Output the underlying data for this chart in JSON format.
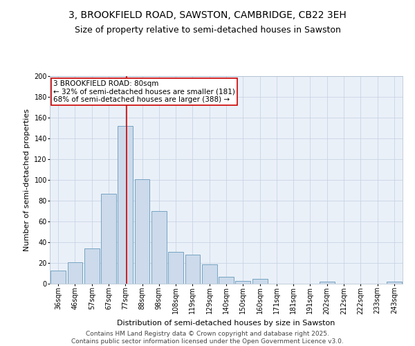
{
  "title": "3, BROOKFIELD ROAD, SAWSTON, CAMBRIDGE, CB22 3EH",
  "subtitle": "Size of property relative to semi-detached houses in Sawston",
  "xlabel": "Distribution of semi-detached houses by size in Sawston",
  "ylabel": "Number of semi-detached properties",
  "categories": [
    "36sqm",
    "46sqm",
    "57sqm",
    "67sqm",
    "77sqm",
    "88sqm",
    "98sqm",
    "108sqm",
    "119sqm",
    "129sqm",
    "140sqm",
    "150sqm",
    "160sqm",
    "171sqm",
    "181sqm",
    "191sqm",
    "202sqm",
    "212sqm",
    "222sqm",
    "233sqm",
    "243sqm"
  ],
  "values": [
    13,
    21,
    34,
    87,
    152,
    101,
    70,
    31,
    28,
    19,
    7,
    3,
    5,
    0,
    0,
    0,
    2,
    0,
    0,
    0,
    2
  ],
  "bar_color": "#ccdaeb",
  "bar_edge_color": "#6699bb",
  "property_label": "3 BROOKFIELD ROAD: 80sqm",
  "annotation_smaller": "← 32% of semi-detached houses are smaller (181)",
  "annotation_larger": "68% of semi-detached houses are larger (388) →",
  "annotation_box_color": "#ffffff",
  "annotation_box_edge": "#cc0000",
  "red_line_color": "#cc0000",
  "ylim": [
    0,
    200
  ],
  "yticks": [
    0,
    20,
    40,
    60,
    80,
    100,
    120,
    140,
    160,
    180,
    200
  ],
  "grid_color": "#c8d4e4",
  "bg_color": "#eaf0f8",
  "footer_line1": "Contains HM Land Registry data © Crown copyright and database right 2025.",
  "footer_line2": "Contains public sector information licensed under the Open Government Licence v3.0.",
  "title_fontsize": 10,
  "subtitle_fontsize": 9,
  "axis_label_fontsize": 8,
  "tick_fontsize": 7,
  "annotation_fontsize": 7.5,
  "footer_fontsize": 6.5
}
